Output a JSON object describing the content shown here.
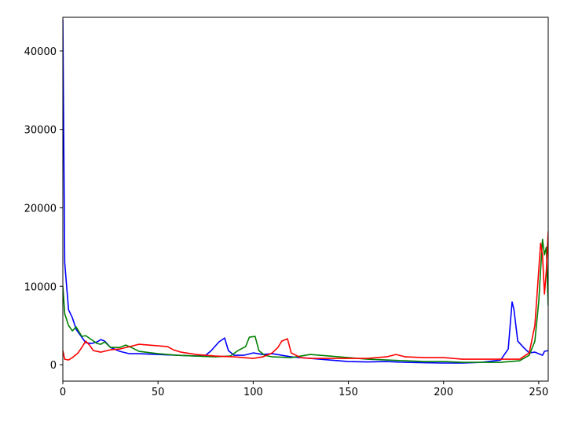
{
  "chart_data": {
    "type": "line",
    "title": "",
    "xlabel": "",
    "ylabel": "",
    "xlim": [
      0,
      255
    ],
    "ylim": [
      -2100,
      44300
    ],
    "grid": false,
    "legend": null,
    "x_ticks": [
      0,
      50,
      100,
      150,
      200,
      250
    ],
    "y_ticks": [
      0,
      10000,
      20000,
      30000,
      40000
    ],
    "x_tick_labels": [
      "0",
      "50",
      "100",
      "150",
      "200",
      "250"
    ],
    "y_tick_labels": [
      "0",
      "10000",
      "20000",
      "30000",
      "40000"
    ],
    "series": [
      {
        "color": "#0000ff",
        "x": [
          0,
          1,
          3,
          5,
          7,
          10,
          12,
          15,
          18,
          20,
          22,
          25,
          30,
          35,
          40,
          50,
          60,
          70,
          75,
          78,
          82,
          85,
          87,
          90,
          95,
          100,
          105,
          110,
          115,
          120,
          130,
          140,
          150,
          160,
          170,
          180,
          190,
          200,
          210,
          220,
          230,
          234,
          236,
          237,
          239,
          242,
          245,
          248,
          250,
          252,
          253,
          255
        ],
        "y": [
          44000,
          13000,
          7000,
          6000,
          4500,
          3500,
          2800,
          2700,
          2900,
          3200,
          3000,
          2200,
          1700,
          1400,
          1400,
          1300,
          1200,
          1100,
          1200,
          1800,
          2900,
          3400,
          1800,
          1200,
          1200,
          1500,
          1300,
          1400,
          1200,
          1000,
          800,
          600,
          400,
          350,
          400,
          300,
          250,
          200,
          200,
          300,
          600,
          2000,
          8000,
          7000,
          3000,
          2200,
          1500,
          1600,
          1400,
          1200,
          1700,
          1800
        ]
      },
      {
        "color": "#008000",
        "x": [
          0,
          1,
          3,
          5,
          7,
          10,
          12,
          15,
          18,
          20,
          22,
          25,
          30,
          33,
          36,
          40,
          50,
          60,
          70,
          80,
          88,
          92,
          96,
          98,
          101,
          103,
          106,
          110,
          120,
          125,
          130,
          140,
          150,
          160,
          170,
          180,
          190,
          200,
          210,
          220,
          230,
          240,
          245,
          248,
          250,
          252,
          253,
          254,
          255
        ],
        "y": [
          10000,
          6500,
          5000,
          4300,
          4800,
          3600,
          3700,
          3200,
          2700,
          2600,
          2900,
          2200,
          2200,
          2500,
          2200,
          1700,
          1400,
          1200,
          1100,
          1000,
          1100,
          1800,
          2300,
          3500,
          3600,
          1800,
          1200,
          1000,
          900,
          1100,
          1300,
          1100,
          900,
          700,
          600,
          500,
          400,
          400,
          300,
          300,
          300,
          500,
          1200,
          3000,
          8000,
          16000,
          14000,
          15000,
          7500
        ]
      },
      {
        "color": "#ff0000",
        "x": [
          0,
          1,
          3,
          5,
          8,
          10,
          12,
          14,
          16,
          20,
          25,
          30,
          35,
          40,
          45,
          50,
          55,
          58,
          62,
          70,
          80,
          90,
          100,
          105,
          110,
          113,
          115,
          118,
          120,
          125,
          130,
          140,
          150,
          160,
          170,
          175,
          180,
          190,
          200,
          210,
          220,
          230,
          240,
          245,
          248,
          250,
          251,
          252,
          253,
          254,
          255
        ],
        "y": [
          1800,
          700,
          600,
          900,
          1500,
          2200,
          3000,
          2500,
          1800,
          1600,
          1900,
          2000,
          2300,
          2600,
          2500,
          2400,
          2300,
          1900,
          1600,
          1300,
          1100,
          1000,
          800,
          1000,
          1500,
          2200,
          3000,
          3300,
          1500,
          900,
          800,
          800,
          800,
          800,
          1000,
          1300,
          1000,
          900,
          900,
          700,
          700,
          700,
          700,
          1500,
          5000,
          12000,
          15500,
          14000,
          9000,
          12000,
          17000
        ]
      }
    ]
  }
}
